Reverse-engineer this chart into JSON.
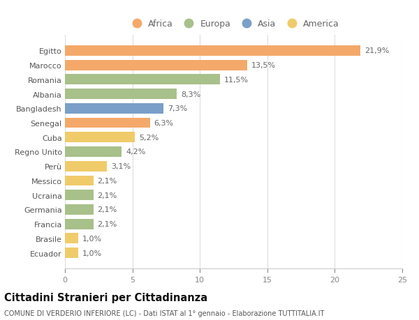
{
  "countries": [
    "Egitto",
    "Marocco",
    "Romania",
    "Albania",
    "Bangladesh",
    "Senegal",
    "Cuba",
    "Regno Unito",
    "Perù",
    "Messico",
    "Ucraina",
    "Germania",
    "Francia",
    "Brasile",
    "Ecuador"
  ],
  "values": [
    21.9,
    13.5,
    11.5,
    8.3,
    7.3,
    6.3,
    5.2,
    4.2,
    3.1,
    2.1,
    2.1,
    2.1,
    2.1,
    1.0,
    1.0
  ],
  "labels": [
    "21,9%",
    "13,5%",
    "11,5%",
    "8,3%",
    "7,3%",
    "6,3%",
    "5,2%",
    "4,2%",
    "3,1%",
    "2,1%",
    "2,1%",
    "2,1%",
    "2,1%",
    "1,0%",
    "1,0%"
  ],
  "colors": [
    "#F4A96A",
    "#F4A96A",
    "#A8C08A",
    "#A8C08A",
    "#7A9FC8",
    "#F4A96A",
    "#F0CB6A",
    "#A8C08A",
    "#F0CB6A",
    "#F0CB6A",
    "#A8C08A",
    "#A8C08A",
    "#A8C08A",
    "#F0CB6A",
    "#F0CB6A"
  ],
  "continent_labels": [
    "Africa",
    "Europa",
    "Asia",
    "America"
  ],
  "continent_colors": [
    "#F4A96A",
    "#A8C08A",
    "#7A9FC8",
    "#F0CB6A"
  ],
  "title": "Cittadini Stranieri per Cittadinanza",
  "subtitle": "COMUNE DI VERDERIO INFERIORE (LC) - Dati ISTAT al 1° gennaio - Elaborazione TUTTITALIA.IT",
  "xlim": [
    0,
    25
  ],
  "xticks": [
    0,
    5,
    10,
    15,
    20,
    25
  ],
  "background_color": "#ffffff",
  "grid_color": "#dddddd",
  "bar_height": 0.72,
  "label_fontsize": 8,
  "tick_fontsize": 8,
  "title_fontsize": 10.5,
  "subtitle_fontsize": 7,
  "legend_fontsize": 9
}
